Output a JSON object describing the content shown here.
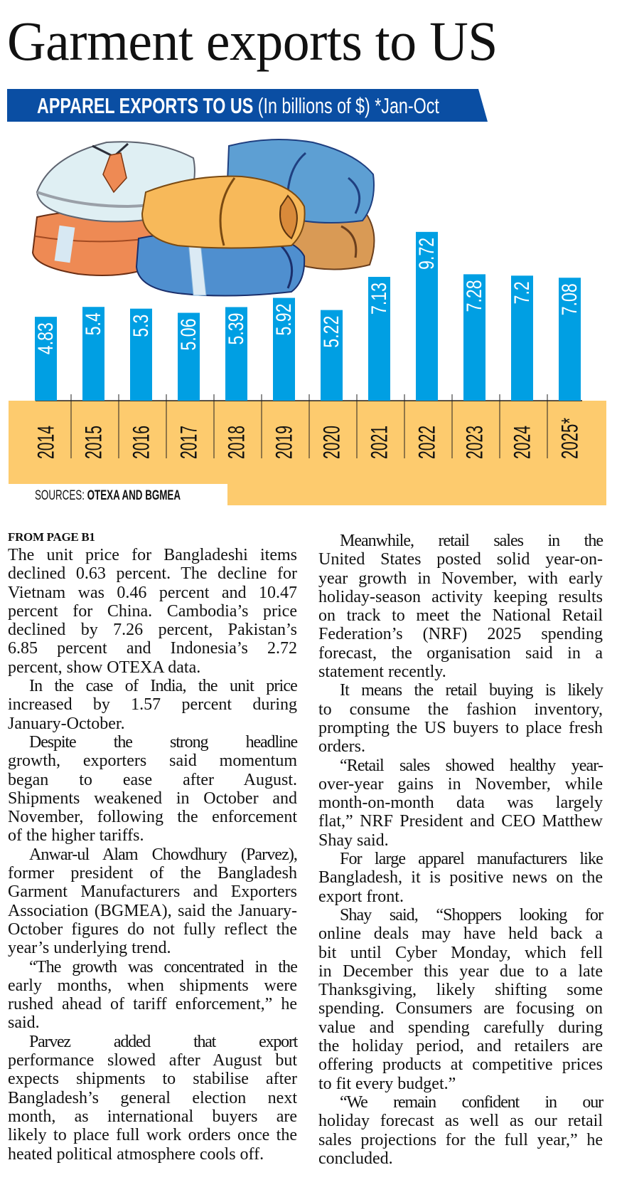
{
  "headline": "Garment exports to US",
  "banner": {
    "bold": "APPAREL EXPORTS TO US",
    "light": " (In billions of $) *Jan-Oct",
    "color": "#0a4ea3"
  },
  "illustration": "folded-clothes-stack",
  "chart_data": {
    "type": "bar",
    "title": "APPAREL EXPORTS TO US (In billions of $) *Jan-Oct",
    "categories": [
      "2014",
      "2015",
      "2016",
      "2017",
      "2018",
      "2019",
      "2020",
      "2021",
      "2022",
      "2023",
      "2024",
      "2025*"
    ],
    "values": [
      4.83,
      5.4,
      5.3,
      5.06,
      5.39,
      5.92,
      5.22,
      7.13,
      9.72,
      7.28,
      7.2,
      7.08
    ],
    "value_labels": [
      "4.83",
      "5.4",
      "5.3",
      "5.06",
      "5.39",
      "5.92",
      "5.22",
      "7.13",
      "9.72",
      "7.28",
      "7.2",
      "7.08"
    ],
    "unit": "billions of $",
    "ylim": [
      0,
      10
    ],
    "grid": false,
    "bar_color": "#009fe3",
    "axis_band_color": "#fdcb6e",
    "labels_orientation": "vertical"
  },
  "sources": {
    "label": "SOURCES:",
    "value": " OTEXA AND BGMEA"
  },
  "article": {
    "kicker": "FROM PAGE B1",
    "left": [
      [
        "The unit price for Bangladeshi items",
        "declined 0.63 percent. The decline for",
        "Vietnam was 0.46 percent and 10.47",
        "percent for China. Cambodia’s price",
        "declined by 7.26 percent, Pakistan’s",
        "6.85 percent and Indonesia’s 2.72",
        "percent, show OTEXA data."
      ],
      [
        "In the case of India, the unit price",
        "increased by 1.57 percent during",
        "January-October."
      ],
      [
        "Despite the strong headline",
        "growth, exporters said momentum",
        "began to ease after August.",
        "Shipments weakened in October and",
        "November, following the enforcement",
        "of the higher tariffs."
      ],
      [
        "Anwar-ul Alam Chowdhury (Parvez),",
        "former president of the Bangladesh",
        "Garment Manufacturers and Exporters",
        "Association (BGMEA), said the January-",
        "October figures do not fully reflect the",
        "year’s underlying trend."
      ],
      [
        "“The growth was concentrated in the",
        "early months, when shipments were",
        "rushed ahead of tariff enforcement,” he",
        "said."
      ],
      [
        "Parvez added that export",
        "performance slowed after August but",
        "expects shipments to stabilise after",
        "Bangladesh’s general election next",
        "month, as international buyers are",
        "likely to place full work orders once the",
        "heated political atmosphere cools off."
      ]
    ],
    "right": [
      [
        "Meanwhile, retail sales in the",
        "United States posted solid year-on-",
        "year growth in November, with early",
        "holiday-season activity keeping results",
        "on track to meet the National Retail",
        "Federation’s (NRF) 2025 spending",
        "forecast, the organisation said in a",
        "statement recently."
      ],
      [
        "It means the retail buying is likely",
        "to consume the fashion inventory,",
        "prompting the US buyers to place fresh",
        "orders."
      ],
      [
        "“Retail sales showed healthy year-",
        "over-year gains in November, while",
        "month-on-month data was largely",
        "flat,” NRF President and CEO Matthew",
        "Shay said."
      ],
      [
        "For large apparel manufacturers like",
        "Bangladesh, it is positive news on the",
        "export front."
      ],
      [
        "Shay said, “Shoppers looking for",
        "online deals may have held back a",
        "bit until Cyber Monday, which fell",
        "in December this year due to a late",
        "Thanksgiving, likely shifting some",
        "spending. Consumers are focusing on",
        "value and spending carefully during",
        "the holiday period, and retailers are",
        "offering products at competitive prices",
        "to fit every budget.”"
      ],
      [
        "“We remain confident in our",
        "holiday forecast as well as our retail",
        "sales projections for the full year,” he",
        "concluded."
      ]
    ]
  }
}
